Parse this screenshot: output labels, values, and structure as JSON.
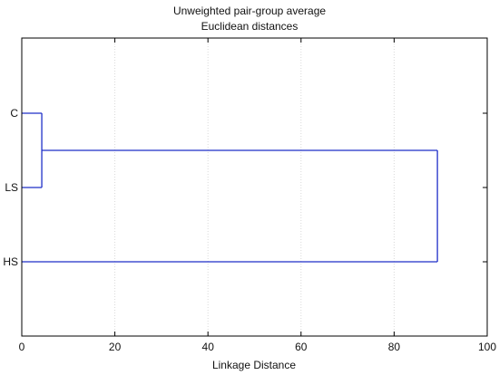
{
  "chart_data": {
    "type": "dendrogram",
    "title": "Unweighted pair-group average",
    "subtitle": "Euclidean distances",
    "xlabel": "Linkage Distance",
    "ylabel": "",
    "xlim": [
      0,
      100
    ],
    "x_ticks": [
      0,
      20,
      40,
      60,
      80,
      100
    ],
    "grid": true,
    "leaves": [
      "C",
      "LS",
      "HS"
    ],
    "merges": [
      {
        "left": "C",
        "right": "LS",
        "distance": 4.3
      },
      {
        "left": "C+LS",
        "right": "HS",
        "distance": 89.3
      }
    ],
    "colors": {
      "link": "#1f2fc8",
      "grid": "#d9d9d9",
      "frame": "#000000"
    }
  }
}
